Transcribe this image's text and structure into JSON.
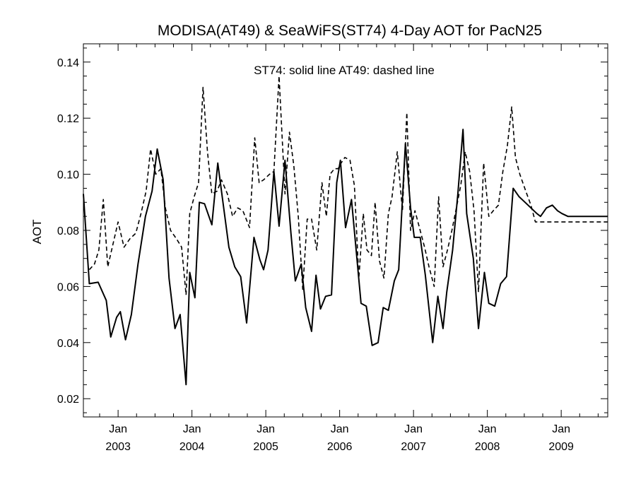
{
  "chart_data": {
    "type": "line",
    "title": "MODISA(AT49) & SeaWiFS(ST74) 4-Day AOT for PacN25",
    "ylabel": "AOT",
    "xlabel": "",
    "annotation": "ST74: solid line   AT49: dashed line",
    "xlim": [
      2002.53,
      2009.63
    ],
    "ylim": [
      0.0135,
      0.1465
    ],
    "y_ticks": [
      "0.02",
      "0.04",
      "0.06",
      "0.08",
      "0.10",
      "0.12",
      "0.14"
    ],
    "y_tick_values": [
      0.02,
      0.04,
      0.06,
      0.08,
      0.1,
      0.12,
      0.14
    ],
    "x_ticks": [
      {
        "month": "Jan",
        "year": "2003",
        "value": 2003.0
      },
      {
        "month": "Jan",
        "year": "2004",
        "value": 2004.0
      },
      {
        "month": "Jan",
        "year": "2005",
        "value": 2005.0
      },
      {
        "month": "Jan",
        "year": "2006",
        "value": 2006.0
      },
      {
        "month": "Jan",
        "year": "2007",
        "value": 2007.0
      },
      {
        "month": "Jan",
        "year": "2008",
        "value": 2008.0
      },
      {
        "month": "Jan",
        "year": "2009",
        "value": 2009.0
      }
    ],
    "grid": false,
    "legend": "top-center annotation",
    "series": [
      {
        "name": "ST74",
        "style": "solid",
        "color": "#000000",
        "x": [
          2002.53,
          2002.61,
          2002.73,
          2002.84,
          2002.9,
          2002.98,
          2003.03,
          2003.1,
          2003.18,
          2003.27,
          2003.37,
          2003.46,
          2003.53,
          2003.61,
          2003.69,
          2003.77,
          2003.84,
          2003.92,
          2003.97,
          2004.04,
          2004.1,
          2004.17,
          2004.27,
          2004.35,
          2004.42,
          2004.5,
          2004.58,
          2004.66,
          2004.74,
          2004.84,
          2004.92,
          2004.97,
          2005.03,
          2005.11,
          2005.18,
          2005.26,
          2005.34,
          2005.4,
          2005.48,
          2005.54,
          2005.62,
          2005.68,
          2005.74,
          2005.81,
          2005.89,
          2005.96,
          2006.01,
          2006.08,
          2006.16,
          2006.22,
          2006.29,
          2006.36,
          2006.44,
          2006.52,
          2006.59,
          2006.66,
          2006.74,
          2006.8,
          2006.89,
          2006.96,
          2007.01,
          2007.09,
          2007.16,
          2007.26,
          2007.33,
          2007.4,
          2007.45,
          2007.53,
          2007.6,
          2007.67,
          2007.72,
          2007.81,
          2007.88,
          2007.96,
          2008.02,
          2008.1,
          2008.18,
          2008.26,
          2008.35,
          2008.43,
          2008.51,
          2008.59,
          2008.67,
          2008.72,
          2008.8,
          2008.88,
          2008.95,
          2009.01,
          2009.09,
          2009.14,
          2009.25,
          2009.37,
          2009.48,
          2009.63
        ],
        "values": [
          0.093,
          0.061,
          0.0615,
          0.055,
          0.042,
          0.049,
          0.051,
          0.041,
          0.05,
          0.068,
          0.085,
          0.094,
          0.109,
          0.098,
          0.063,
          0.045,
          0.05,
          0.025,
          0.065,
          0.056,
          0.09,
          0.0895,
          0.082,
          0.104,
          0.09,
          0.074,
          0.067,
          0.0635,
          0.047,
          0.0775,
          0.0695,
          0.066,
          0.073,
          0.101,
          0.0815,
          0.105,
          0.079,
          0.062,
          0.068,
          0.0525,
          0.044,
          0.064,
          0.052,
          0.0565,
          0.057,
          0.097,
          0.105,
          0.081,
          0.091,
          0.074,
          0.054,
          0.053,
          0.039,
          0.04,
          0.0525,
          0.0515,
          0.062,
          0.066,
          0.111,
          0.088,
          0.0775,
          0.0775,
          0.064,
          0.04,
          0.0565,
          0.045,
          0.058,
          0.073,
          0.093,
          0.116,
          0.086,
          0.07,
          0.045,
          0.065,
          0.054,
          0.053,
          0.061,
          0.0635,
          0.095,
          0.092,
          0.09,
          0.088,
          0.086,
          0.085,
          0.088,
          0.089,
          0.087,
          0.086,
          0.085,
          0.085,
          0.085,
          0.085,
          0.085,
          0.085
        ]
      },
      {
        "name": "AT49",
        "style": "dashed",
        "color": "#000000",
        "x": [
          2002.61,
          2002.68,
          2002.74,
          2002.8,
          2002.86,
          2002.93,
          2003.0,
          2003.08,
          2003.16,
          2003.24,
          2003.31,
          2003.38,
          2003.44,
          2003.51,
          2003.58,
          2003.64,
          2003.71,
          2003.79,
          2003.86,
          2003.92,
          2003.97,
          2004.03,
          2004.09,
          2004.15,
          2004.21,
          2004.27,
          2004.34,
          2004.4,
          2004.48,
          2004.55,
          2004.62,
          2004.69,
          2004.78,
          2004.85,
          2004.91,
          2004.97,
          2005.05,
          2005.11,
          2005.18,
          2005.26,
          2005.32,
          2005.38,
          2005.44,
          2005.5,
          2005.56,
          2005.62,
          2005.69,
          2005.76,
          2005.82,
          2005.87,
          2005.93,
          2005.98,
          2006.02,
          2006.07,
          2006.14,
          2006.2,
          2006.26,
          2006.32,
          2006.37,
          2006.43,
          2006.48,
          2006.54,
          2006.6,
          2006.66,
          2006.71,
          2006.78,
          2006.85,
          2006.91,
          2006.96,
          2007.02,
          2007.08,
          2007.15,
          2007.21,
          2007.28,
          2007.34,
          2007.4,
          2007.46,
          2007.52,
          2007.58,
          2007.64,
          2007.7,
          2007.76,
          2007.82,
          2007.88,
          2007.95,
          2008.02,
          2008.08,
          2008.15,
          2008.21,
          2008.27,
          2008.33,
          2008.38,
          2008.44,
          2008.52,
          2008.59,
          2008.65,
          2008.7,
          2008.76,
          2008.82,
          2008.88,
          2008.94,
          2009.0,
          2009.06,
          2009.13,
          2009.2,
          2009.26,
          2009.32,
          2009.39,
          2009.46,
          2009.52,
          2009.58,
          2009.63
        ],
        "values": [
          0.066,
          0.068,
          0.073,
          0.091,
          0.067,
          0.075,
          0.083,
          0.074,
          0.077,
          0.079,
          0.086,
          0.094,
          0.109,
          0.1,
          0.102,
          0.088,
          0.08,
          0.077,
          0.074,
          0.057,
          0.086,
          0.092,
          0.097,
          0.131,
          0.108,
          0.093,
          0.094,
          0.098,
          0.093,
          0.085,
          0.088,
          0.087,
          0.081,
          0.113,
          0.097,
          0.098,
          0.1,
          0.101,
          0.135,
          0.093,
          0.115,
          0.103,
          0.085,
          0.059,
          0.084,
          0.084,
          0.073,
          0.097,
          0.085,
          0.1,
          0.102,
          0.102,
          0.104,
          0.106,
          0.105,
          0.096,
          0.063,
          0.086,
          0.073,
          0.071,
          0.09,
          0.069,
          0.063,
          0.086,
          0.092,
          0.108,
          0.087,
          0.122,
          0.08,
          0.087,
          0.081,
          0.074,
          0.067,
          0.06,
          0.092,
          0.067,
          0.073,
          0.08,
          0.088,
          0.096,
          0.108,
          0.101,
          0.087,
          0.058,
          0.104,
          0.085,
          0.087,
          0.089,
          0.101,
          0.11,
          0.124,
          0.106,
          0.1,
          0.094,
          0.089,
          0.083,
          0.083,
          0.083,
          0.083,
          0.083,
          0.083,
          0.083,
          0.083,
          0.083,
          0.083,
          0.083,
          0.083,
          0.083,
          0.083,
          0.083,
          0.083,
          0.083
        ]
      }
    ]
  }
}
